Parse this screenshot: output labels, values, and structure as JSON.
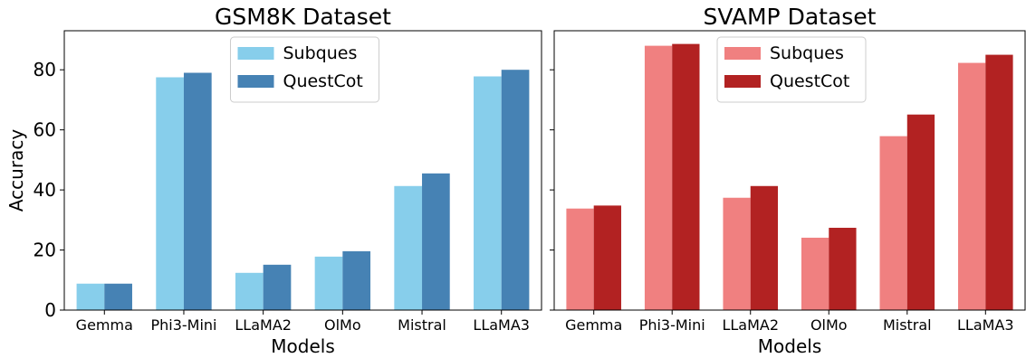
{
  "chart_data": [
    {
      "type": "bar",
      "title": "GSM8K Dataset",
      "xlabel": "Models",
      "ylabel": "Accuracy",
      "categories": [
        "Gemma",
        "Phi3-Mini",
        "LLaMA2",
        "OlMo",
        "Mistral",
        "LLaMA3"
      ],
      "series": [
        {
          "name": "Subques",
          "color": "#87ceeb",
          "values": [
            8.8,
            77.5,
            12.4,
            17.8,
            41.3,
            77.8
          ]
        },
        {
          "name": "QuestCot",
          "color": "#4682b4",
          "values": [
            8.8,
            79.0,
            15.1,
            19.6,
            45.5,
            80.0
          ]
        }
      ],
      "ylim": [
        0,
        93
      ],
      "yticks": [
        0,
        20,
        40,
        60,
        80
      ],
      "legend": "top-center",
      "grid": false
    },
    {
      "type": "bar",
      "title": "SVAMP Dataset",
      "xlabel": "Models",
      "ylabel": "",
      "categories": [
        "Gemma",
        "Phi3-Mini",
        "LLaMA2",
        "OlMo",
        "Mistral",
        "LLaMA3"
      ],
      "series": [
        {
          "name": "Subques",
          "color": "#f08080",
          "values": [
            33.8,
            88.0,
            37.4,
            24.1,
            57.9,
            82.3
          ]
        },
        {
          "name": "QuestCot",
          "color": "#b22222",
          "values": [
            34.8,
            88.6,
            41.3,
            27.4,
            65.1,
            85.0
          ]
        }
      ],
      "ylim": [
        0,
        93
      ],
      "yticks": [
        0,
        20,
        40,
        60,
        80
      ],
      "shared_y": true,
      "legend": "top-center",
      "grid": false
    }
  ]
}
